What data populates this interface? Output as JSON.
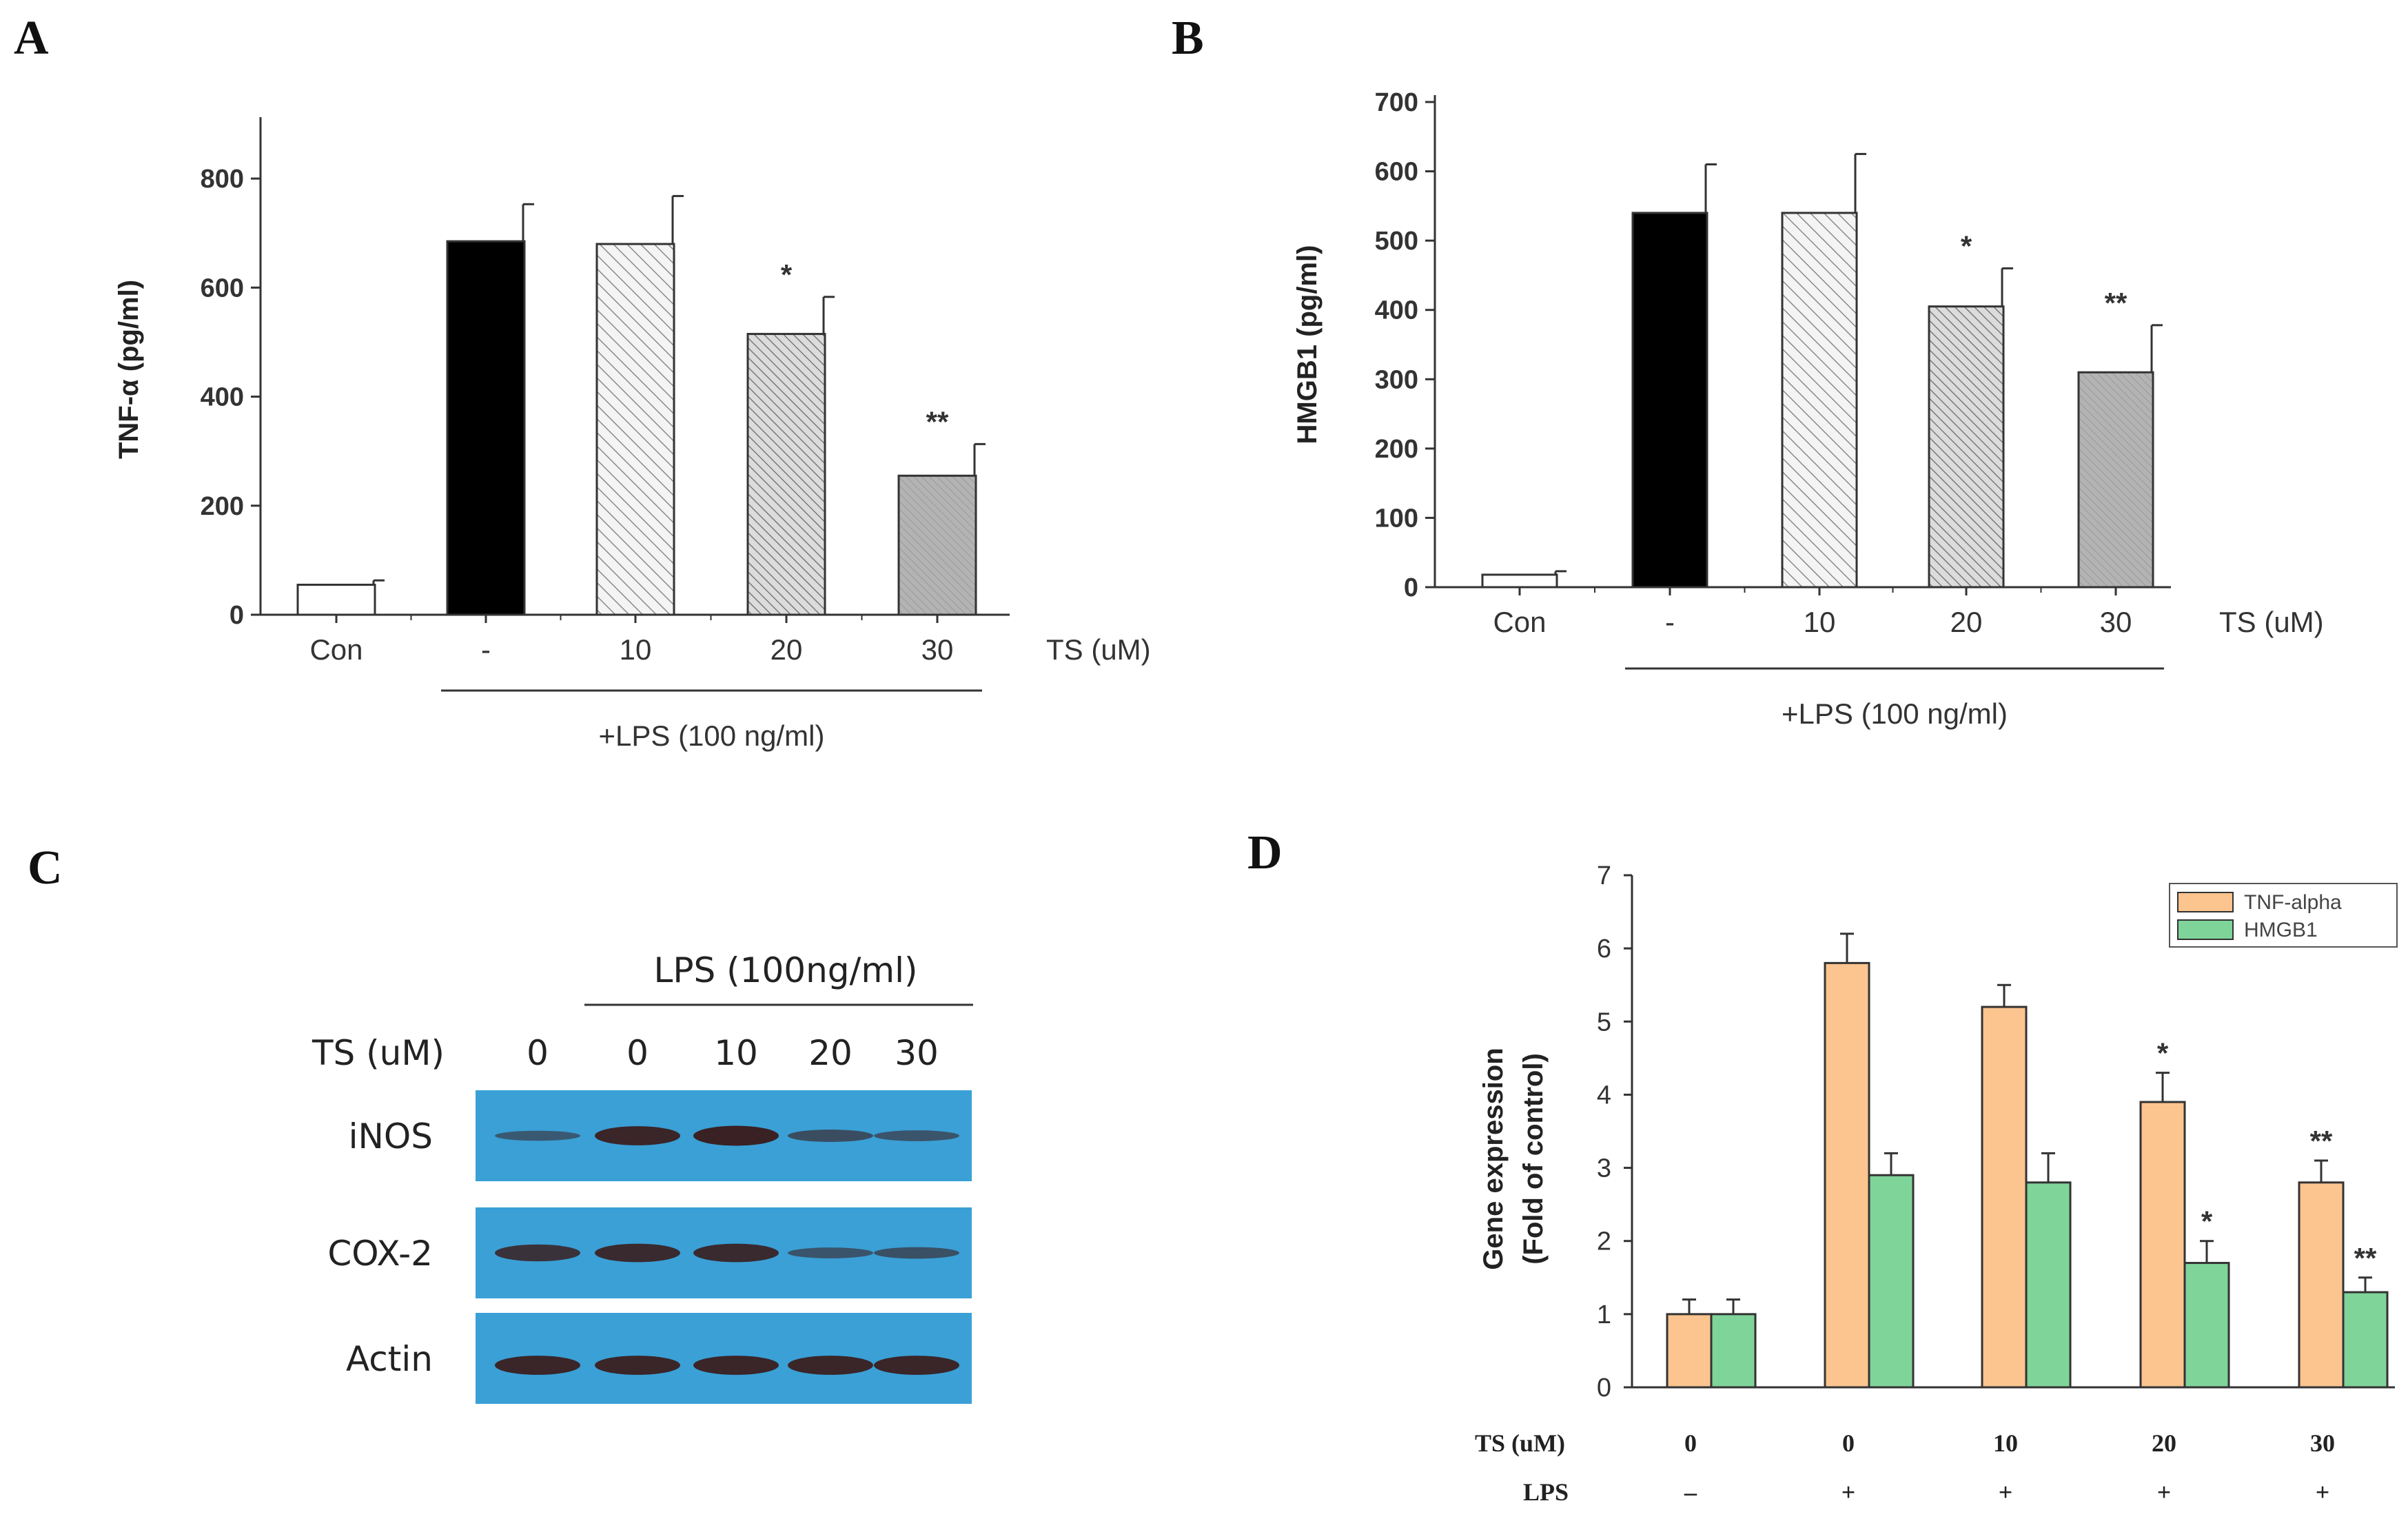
{
  "chart_data": [
    {
      "panel": "A",
      "type": "bar",
      "categories": [
        "Con",
        "-",
        "10",
        "20",
        "30"
      ],
      "values": [
        55,
        685,
        680,
        515,
        255
      ],
      "errors": [
        8,
        68,
        88,
        68,
        58
      ],
      "significance": [
        "",
        "",
        "",
        "*",
        "**"
      ],
      "ylabel": "TNF-α (pg/ml)",
      "xlabel": "TS (uM)",
      "group_label": "+LPS  (100 ng/ml)",
      "ylim": [
        0,
        900
      ],
      "yticks": [
        "0",
        "200",
        "400",
        "600",
        "800"
      ],
      "bar_styles": [
        "white",
        "black",
        "hatch-light",
        "hatch-medium",
        "gray"
      ]
    },
    {
      "panel": "B",
      "type": "bar",
      "categories": [
        "Con",
        "-",
        "10",
        "20",
        "30"
      ],
      "values": [
        18,
        540,
        540,
        405,
        310
      ],
      "errors": [
        5,
        70,
        85,
        55,
        68
      ],
      "significance": [
        "",
        "",
        "",
        "*",
        "**"
      ],
      "ylabel": "HMGB1 (pg/ml)",
      "xlabel": "TS (uM)",
      "group_label": "+LPS  (100 ng/ml)",
      "ylim": [
        0,
        700
      ],
      "yticks": [
        "0",
        "100",
        "200",
        "300",
        "400",
        "500",
        "600",
        "700"
      ],
      "bar_styles": [
        "white",
        "black",
        "hatch-light",
        "hatch-medium",
        "gray"
      ]
    },
    {
      "panel": "C",
      "type": "western_blot",
      "header": "LPS (100ng/ml)",
      "row_header": "TS (uM)",
      "lanes": [
        "0",
        "0",
        "10",
        "20",
        "30"
      ],
      "rows": [
        {
          "label": "iNOS",
          "intensity": [
            0.3,
            0.9,
            0.95,
            0.45,
            0.35
          ]
        },
        {
          "label": "COX-2",
          "intensity": [
            0.75,
            0.85,
            0.85,
            0.35,
            0.4
          ]
        },
        {
          "label": "Actin",
          "intensity": [
            0.9,
            0.9,
            0.9,
            0.9,
            0.9
          ]
        }
      ]
    },
    {
      "panel": "D",
      "type": "bar",
      "categories": [
        "0",
        "0",
        "10",
        "20",
        "30"
      ],
      "lps": [
        "–",
        "+",
        "+",
        "+",
        "+"
      ],
      "series": [
        {
          "name": "TNF-alpha",
          "values": [
            1.0,
            5.8,
            5.2,
            3.9,
            2.8
          ],
          "errors": [
            0.2,
            0.4,
            0.3,
            0.4,
            0.3
          ],
          "significance": [
            "",
            "",
            "",
            "*",
            "**"
          ],
          "color": "#fcc48f"
        },
        {
          "name": "HMGB1",
          "values": [
            1.0,
            2.9,
            2.8,
            1.7,
            1.3
          ],
          "errors": [
            0.2,
            0.3,
            0.4,
            0.3,
            0.2
          ],
          "significance": [
            "",
            "",
            "",
            "*",
            "**"
          ],
          "color": "#7fd49a"
        }
      ],
      "ylabel": [
        "Gene expression",
        "(Fold of control)"
      ],
      "row_labels": [
        "TS (uM)",
        "LPS"
      ],
      "ylim": [
        0,
        7
      ],
      "yticks": [
        "0",
        "1",
        "2",
        "3",
        "4",
        "5",
        "6",
        "7"
      ]
    }
  ],
  "panel_letters": [
    "A",
    "B",
    "C",
    "D"
  ]
}
